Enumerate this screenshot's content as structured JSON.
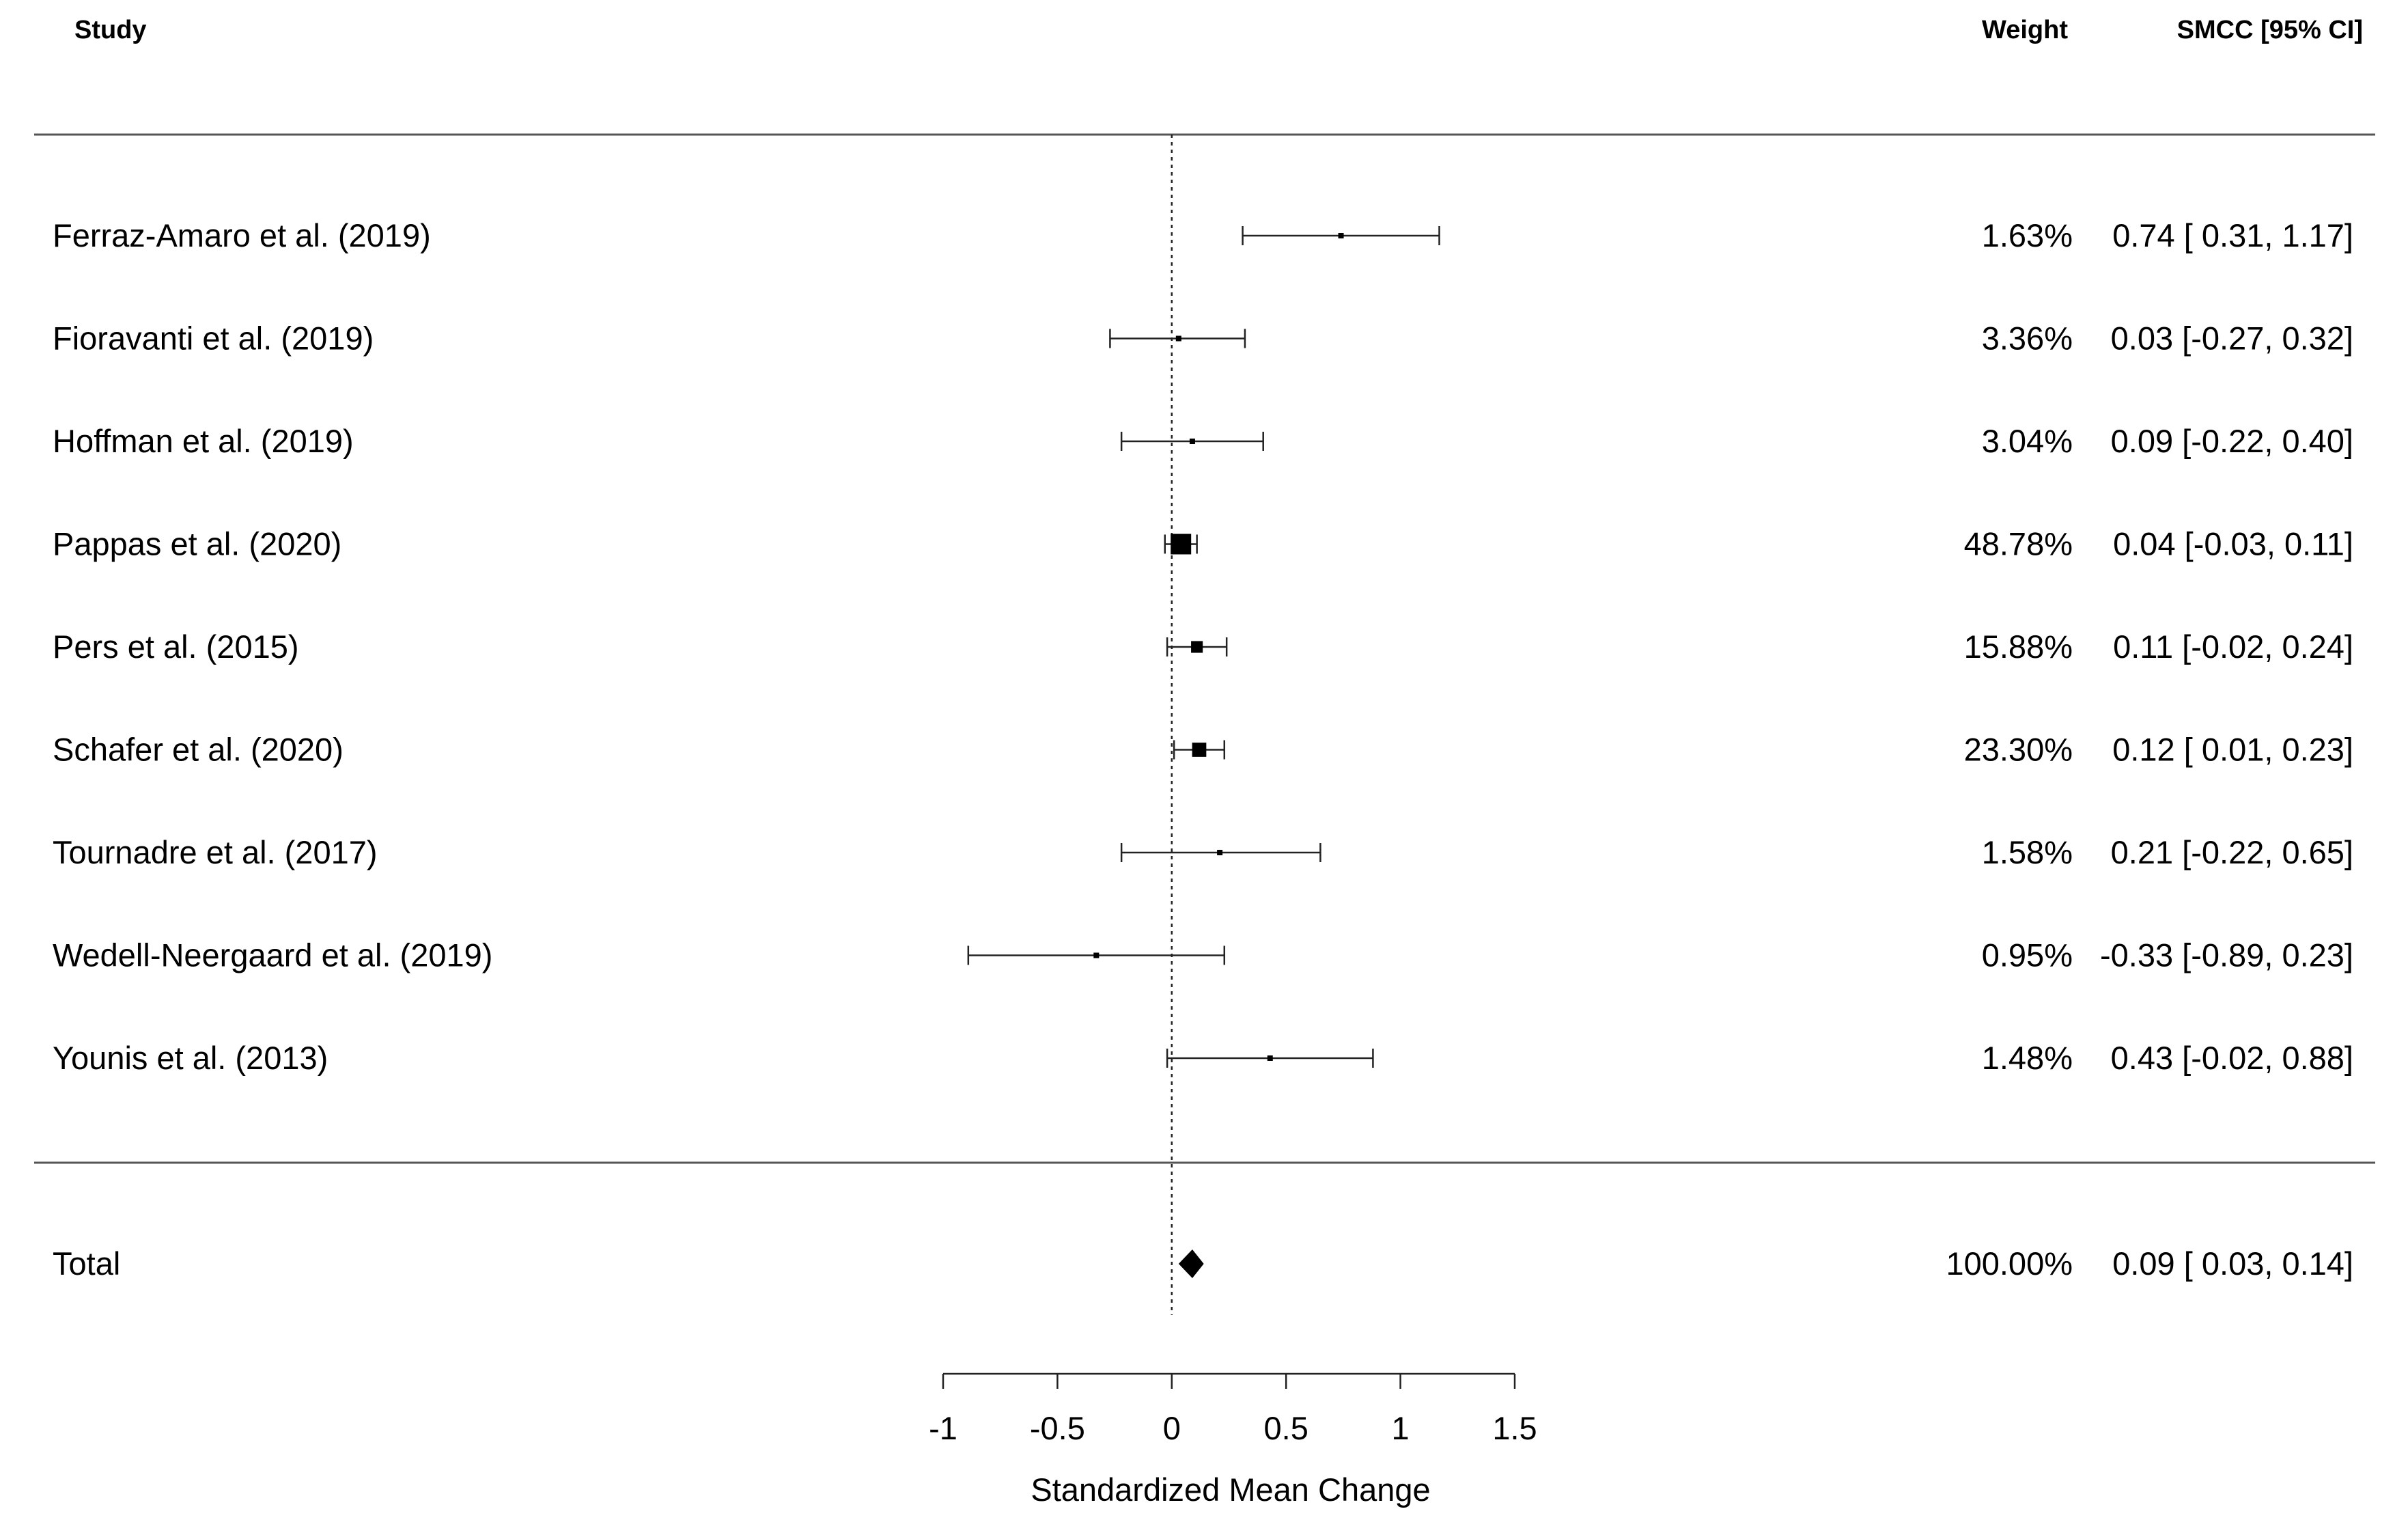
{
  "chart_data": {
    "type": "forest",
    "headers": {
      "study": "Study",
      "weight": "Weight",
      "effect": "SMCC [95% CI]"
    },
    "xlabel": "Standardized Mean Change",
    "xlim": [
      -1,
      1.5
    ],
    "xticks": [
      -1,
      -0.5,
      0,
      0.5,
      1,
      1.5
    ],
    "xtick_labels": [
      "-1",
      "-0.5",
      "0",
      "0.5",
      "1",
      "1.5"
    ],
    "reference_line": 0,
    "studies": [
      {
        "label": "Ferraz-Amaro et al. (2019)",
        "estimate": 0.74,
        "ci_lower": 0.31,
        "ci_upper": 1.17,
        "weight": "1.63%",
        "weight_value": 1.63,
        "ci_text": "0.74 [ 0.31, 1.17]"
      },
      {
        "label": "Fioravanti et al. (2019)",
        "estimate": 0.03,
        "ci_lower": -0.27,
        "ci_upper": 0.32,
        "weight": "3.36%",
        "weight_value": 3.36,
        "ci_text": "0.03 [-0.27, 0.32]"
      },
      {
        "label": "Hoffman et al. (2019)",
        "estimate": 0.09,
        "ci_lower": -0.22,
        "ci_upper": 0.4,
        "weight": "3.04%",
        "weight_value": 3.04,
        "ci_text": "0.09 [-0.22, 0.40]"
      },
      {
        "label": "Pappas et al. (2020)",
        "estimate": 0.04,
        "ci_lower": -0.03,
        "ci_upper": 0.11,
        "weight": "48.78%",
        "weight_value": 48.78,
        "ci_text": "0.04 [-0.03, 0.11]"
      },
      {
        "label": "Pers et al. (2015)",
        "estimate": 0.11,
        "ci_lower": -0.02,
        "ci_upper": 0.24,
        "weight": "15.88%",
        "weight_value": 15.88,
        "ci_text": "0.11 [-0.02, 0.24]"
      },
      {
        "label": "Schafer et al. (2020)",
        "estimate": 0.12,
        "ci_lower": 0.01,
        "ci_upper": 0.23,
        "weight": "23.30%",
        "weight_value": 23.3,
        "ci_text": "0.12 [ 0.01, 0.23]"
      },
      {
        "label": "Tournadre et al. (2017)",
        "estimate": 0.21,
        "ci_lower": -0.22,
        "ci_upper": 0.65,
        "weight": "1.58%",
        "weight_value": 1.58,
        "ci_text": "0.21 [-0.22, 0.65]"
      },
      {
        "label": "Wedell-Neergaard et al. (2019)",
        "estimate": -0.33,
        "ci_lower": -0.89,
        "ci_upper": 0.23,
        "weight": "0.95%",
        "weight_value": 0.95,
        "ci_text": "-0.33 [-0.89, 0.23]"
      },
      {
        "label": "Younis et al. (2013)",
        "estimate": 0.43,
        "ci_lower": -0.02,
        "ci_upper": 0.88,
        "weight": "1.48%",
        "weight_value": 1.48,
        "ci_text": "0.43 [-0.02, 0.88]"
      }
    ],
    "total": {
      "label": "Total",
      "estimate": 0.09,
      "ci_lower": 0.03,
      "ci_upper": 0.14,
      "weight": "100.00%",
      "ci_text": "0.09 [ 0.03, 0.14]"
    }
  }
}
